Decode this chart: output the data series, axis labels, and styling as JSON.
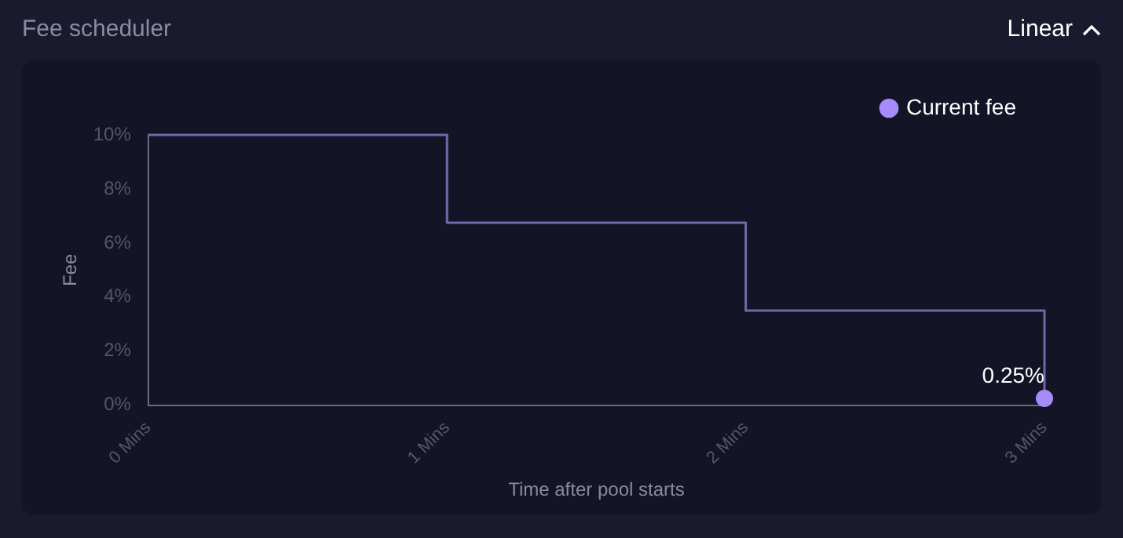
{
  "chart_data": {
    "type": "step",
    "title": "Fee scheduler",
    "xlabel": "Time after pool starts",
    "ylabel": "Fee",
    "annotations": [
      "Linear"
    ],
    "series": [
      {
        "color": "#6e6aa8",
        "x": [
          0,
          1,
          2,
          3
        ],
        "values": [
          10,
          6.75,
          3.5,
          0.25
        ]
      },
      {
        "type": "scatter",
        "name": "Current fee",
        "color": "#a78bfa",
        "marker": "circle",
        "x": [
          3
        ],
        "values": [
          0.25
        ],
        "value_labels": [
          "0.25%"
        ]
      }
    ],
    "xlim": [
      0,
      3
    ],
    "xticks": [
      {
        "value": 0,
        "label": "0 Mins"
      },
      {
        "value": 1,
        "label": "1 Mins"
      },
      {
        "value": 2,
        "label": "2 Mins"
      },
      {
        "value": 3,
        "label": "3 Mins"
      }
    ],
    "ylim": [
      0,
      10
    ],
    "yticks": [
      {
        "value": 0,
        "label": "0%"
      },
      {
        "value": 2,
        "label": "2%"
      },
      {
        "value": 4,
        "label": "4%"
      },
      {
        "value": 6,
        "label": "6%"
      },
      {
        "value": 8,
        "label": "8%"
      },
      {
        "value": 10,
        "label": "10%"
      }
    ],
    "grid": false,
    "legend": "top right"
  }
}
